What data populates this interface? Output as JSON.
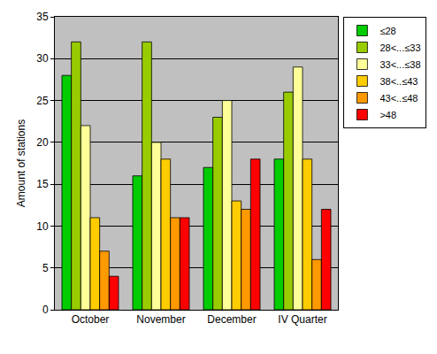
{
  "chart_data": {
    "type": "bar",
    "y_label": "Amount of stations",
    "categories": [
      "October",
      "November",
      "December",
      "IV Quarter"
    ],
    "series": [
      {
        "name": "≤28",
        "color": "#00cc00",
        "values": [
          28,
          16,
          17,
          18
        ]
      },
      {
        "name": "28<...≤33",
        "color": "#99cc00",
        "values": [
          32,
          32,
          23,
          26
        ]
      },
      {
        "name": "33<...≤38",
        "color": "#ffff99",
        "values": [
          22,
          20,
          25,
          29
        ]
      },
      {
        "name": "38<..≤43",
        "color": "#ffcc00",
        "values": [
          11,
          18,
          13,
          18
        ]
      },
      {
        "name": "43<..≤48",
        "color": "#ff9900",
        "values": [
          7,
          11,
          12,
          6
        ]
      },
      {
        "name": ">48",
        "color": "#ff0000",
        "values": [
          4,
          11,
          18,
          12
        ]
      }
    ],
    "ylim": [
      0,
      35
    ],
    "yticks": [
      0,
      5,
      10,
      15,
      20,
      25,
      30,
      35
    ],
    "grid": true,
    "legend": "top-right"
  }
}
